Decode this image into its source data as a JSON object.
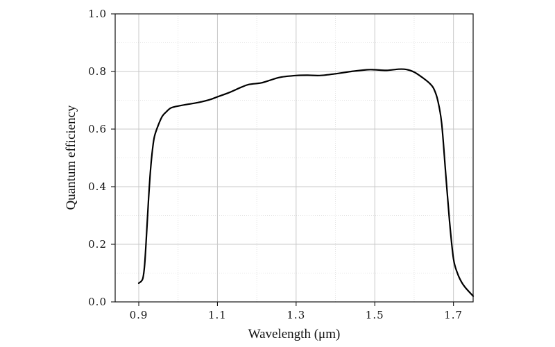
{
  "chart_data": {
    "type": "line",
    "title": "",
    "xlabel": "Wavelength (μm)",
    "ylabel": "Quantum efficiency",
    "xlim": [
      0.84,
      1.75
    ],
    "ylim": [
      0.0,
      1.0
    ],
    "x_ticks": [
      0.9,
      1.1,
      1.3,
      1.5,
      1.7
    ],
    "x_tick_labels": [
      "0.9",
      "1.1",
      "1.3",
      "1.5",
      "1.7"
    ],
    "y_ticks": [
      0.0,
      0.2,
      0.4,
      0.6,
      0.8,
      1.0
    ],
    "y_tick_labels": [
      "0.0",
      "0.2",
      "0.4",
      "0.6",
      "0.8",
      "1.0"
    ],
    "grid": true,
    "series": [
      {
        "x": [
          0.9,
          0.91,
          0.915,
          0.92,
          0.925,
          0.93,
          0.935,
          0.94,
          0.95,
          0.96,
          0.97,
          0.98,
          0.99,
          1.0,
          1.02,
          1.05,
          1.08,
          1.1,
          1.13,
          1.16,
          1.18,
          1.21,
          1.23,
          1.26,
          1.3,
          1.33,
          1.36,
          1.4,
          1.44,
          1.48,
          1.5,
          1.53,
          1.56,
          1.58,
          1.6,
          1.62,
          1.64,
          1.65,
          1.66,
          1.67,
          1.68,
          1.69,
          1.7,
          1.71,
          1.72,
          1.73,
          1.75
        ],
        "y": [
          0.065,
          0.08,
          0.13,
          0.24,
          0.36,
          0.46,
          0.53,
          0.575,
          0.615,
          0.645,
          0.66,
          0.672,
          0.677,
          0.68,
          0.685,
          0.692,
          0.702,
          0.712,
          0.727,
          0.745,
          0.755,
          0.76,
          0.768,
          0.78,
          0.786,
          0.787,
          0.786,
          0.792,
          0.8,
          0.806,
          0.806,
          0.804,
          0.808,
          0.807,
          0.798,
          0.78,
          0.758,
          0.74,
          0.7,
          0.62,
          0.45,
          0.28,
          0.15,
          0.1,
          0.07,
          0.05,
          0.02
        ]
      }
    ]
  }
}
